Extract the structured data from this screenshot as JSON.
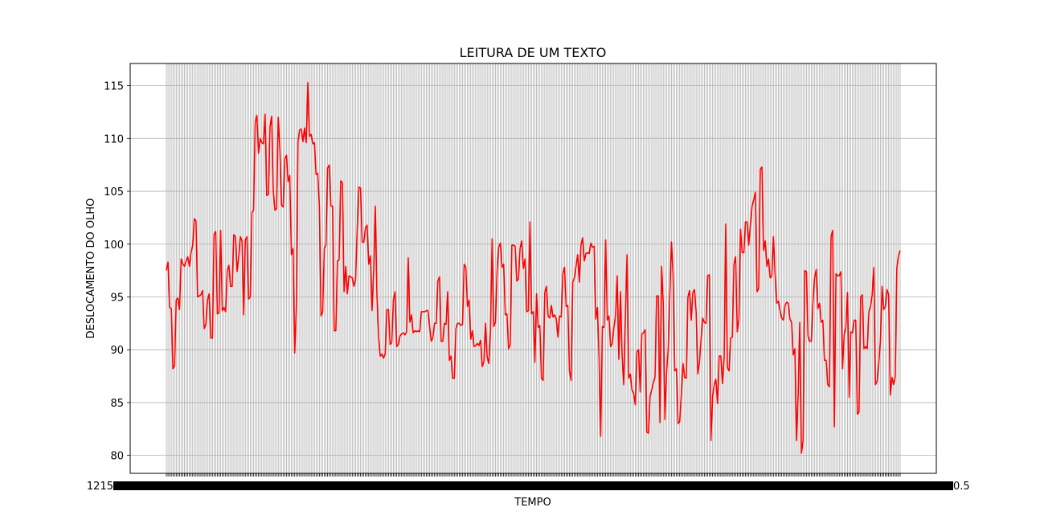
{
  "chart_data": {
    "type": "line",
    "title": "LEITURA DE UM TEXTO",
    "xlabel": "TEMPO",
    "ylabel": "DESLOCAMENTO DO OLHO",
    "ylim": [
      78.3,
      117.1
    ],
    "yticks": [
      80,
      85,
      90,
      95,
      100,
      105,
      110,
      115
    ],
    "grid": true,
    "tick_labels_overlapping": true,
    "x_tick_left_label": "1215",
    "x_tick_right_label": "0.5",
    "colors": {
      "line": "#ff0000",
      "grid": "#b0b0b0",
      "axes": "#000000"
    },
    "series": [
      {
        "values": [
          97.5,
          98.3,
          94,
          93.9,
          88.2,
          88.5,
          94.7,
          94.9,
          93.8,
          98.6,
          98.1,
          97.9,
          98.4,
          98.8,
          97.9,
          99.2,
          99.9,
          102.4,
          102.2,
          95,
          95.1,
          95.2,
          95.6,
          92,
          92.4,
          94.7,
          95.3,
          91.1,
          91.1,
          100.9,
          101.2,
          93.4,
          93.5,
          101.3,
          93.7,
          94,
          93.6,
          97.5,
          98,
          96,
          96,
          100.9,
          100.7,
          97.4,
          98.8,
          100.7,
          100.3,
          93.3,
          100.4,
          100.7,
          94.8,
          95,
          103,
          103.2,
          111.5,
          112.2,
          108.6,
          110,
          109.6,
          109.5,
          112.3,
          104.6,
          104.7,
          111.1,
          112.1,
          105,
          103.2,
          103.4,
          112,
          109,
          103.7,
          103.5,
          108.1,
          108.4,
          105.9,
          106.5,
          99,
          99.6,
          89.7,
          94,
          109.7,
          110.8,
          110.9,
          109.7,
          111,
          109.6,
          115.3,
          110.2,
          110.4,
          109.5,
          109.6,
          106.6,
          106.7,
          103.6,
          93.2,
          93.6,
          99.6,
          99.9,
          107.2,
          107.5,
          103.6,
          103.6,
          91.8,
          91.8,
          98.4,
          98.5,
          106,
          105.8,
          95.5,
          97.9,
          95.3,
          97,
          96.9,
          96.8,
          96,
          96.6,
          101.5,
          105.4,
          105.3,
          100.2,
          100.2,
          101.5,
          101.8,
          98.1,
          98.9,
          93.7,
          97.4,
          103.6,
          95.1,
          91.2,
          89.4,
          89.6,
          89.2,
          89.6,
          93.8,
          93.8,
          90.5,
          90.7,
          94.7,
          95.5,
          90.3,
          90.5,
          91.3,
          91.5,
          91.6,
          91.4,
          91.7,
          98.7,
          92.6,
          93.3,
          91.6,
          91.8,
          91.7,
          91.8,
          91.7,
          93.6,
          93.6,
          93.6,
          93.7,
          93.7,
          92.2,
          90.8,
          91.2,
          92.5,
          92.5,
          96.5,
          96.9,
          90.8,
          90.8,
          92.5,
          92.4,
          95.5,
          89,
          89.4,
          87.3,
          87.3,
          92,
          92.5,
          92.5,
          92.3,
          92.4,
          98.1,
          97.8,
          94.1,
          94.7,
          91,
          91.8,
          90.3,
          90.4,
          90.6,
          90.4,
          90.9,
          88.4,
          88.9,
          92.5,
          89.3,
          88.7,
          91.7,
          100.5,
          92.2,
          92.6,
          97.4,
          99.7,
          100.1,
          97.8,
          98.1,
          93.3,
          93.4,
          90.1,
          90.5,
          99.9,
          99.9,
          99.8,
          96.5,
          96.7,
          99.6,
          100.3,
          97.7,
          98.6,
          93.6,
          93.7,
          102.1,
          93.4,
          93.6,
          88.8,
          95.3,
          92.1,
          92.3,
          87.3,
          87.1,
          95.4,
          96,
          93.2,
          93,
          94.2,
          93.1,
          93.3,
          92.9,
          91.2,
          93.2,
          93.1,
          97.2,
          97.8,
          94.1,
          94.2,
          88,
          87.1,
          96.4,
          96.8,
          97.9,
          99,
          96.4,
          99.9,
          100.6,
          98.4,
          99.1,
          99.2,
          99.1,
          100.1,
          99.7,
          99.8,
          92.9,
          94,
          89.2,
          81.8,
          92.2,
          92.1,
          100.4,
          92.8,
          93.2,
          90.3,
          90.6,
          92.1,
          93.2,
          97,
          89.1,
          95.5,
          89.5,
          86.7,
          93.1,
          99,
          87.3,
          87.7,
          86.2,
          85.9,
          84.8,
          89.8,
          90,
          86,
          91.5,
          91.6,
          91.9,
          82.2,
          82.1,
          85.6,
          86.2,
          86.9,
          87.4,
          95.1,
          95.1,
          83.1,
          97.9,
          94.4,
          83.4,
          87.8,
          90,
          95.2,
          100.2,
          97,
          88,
          88.2,
          83,
          83.2,
          85.8,
          88.7,
          87.4,
          87.3,
          95,
          95.6,
          92.8,
          95.4,
          95.7,
          93.6,
          87.7,
          88.8,
          91,
          93,
          92.6,
          92.5,
          97,
          97.1,
          81.4,
          85.6,
          86.7,
          87.2,
          84.9,
          89.4,
          89.4,
          86.8,
          89.2,
          101.9,
          88.3,
          88,
          91.1,
          91.2,
          98.1,
          98.8,
          91.7,
          92.9,
          101.4,
          99.2,
          99.2,
          102.1,
          102.1,
          99.9,
          101.9,
          103.6,
          104.2,
          104.9,
          95.5,
          95.8,
          107.1,
          107.3,
          99.4,
          100.3,
          97.9,
          98.6,
          96.8,
          97,
          100.7,
          97.1,
          94.4,
          94.6,
          93.7,
          93,
          92.8,
          94.2,
          94.5,
          94.4,
          92.9,
          92.6,
          89.5,
          90.1,
          81.4,
          85.7,
          92.6,
          80.2,
          81.4,
          97.5,
          97.4,
          91.3,
          90.8,
          90.8,
          94.5,
          96.8,
          97.6,
          93.9,
          94.4,
          92.6,
          92.8,
          89,
          89,
          86.7,
          86.5,
          100.7,
          101.3,
          82.7,
          97.2,
          97,
          97,
          97.4,
          88.2,
          91.5,
          92.1,
          95.4,
          85.5,
          91.7,
          91.6,
          92.8,
          92.8,
          83.9,
          84.1,
          95,
          95.2,
          90.1,
          90.3,
          90.1,
          93.6,
          94.1,
          95.2,
          97.8,
          86.7,
          87,
          88.7,
          90.8,
          96,
          93.8,
          94.1,
          95.7,
          95.2,
          85.7,
          87.4,
          86.7,
          87.4,
          97.8,
          98.9,
          99.4
        ]
      }
    ]
  }
}
